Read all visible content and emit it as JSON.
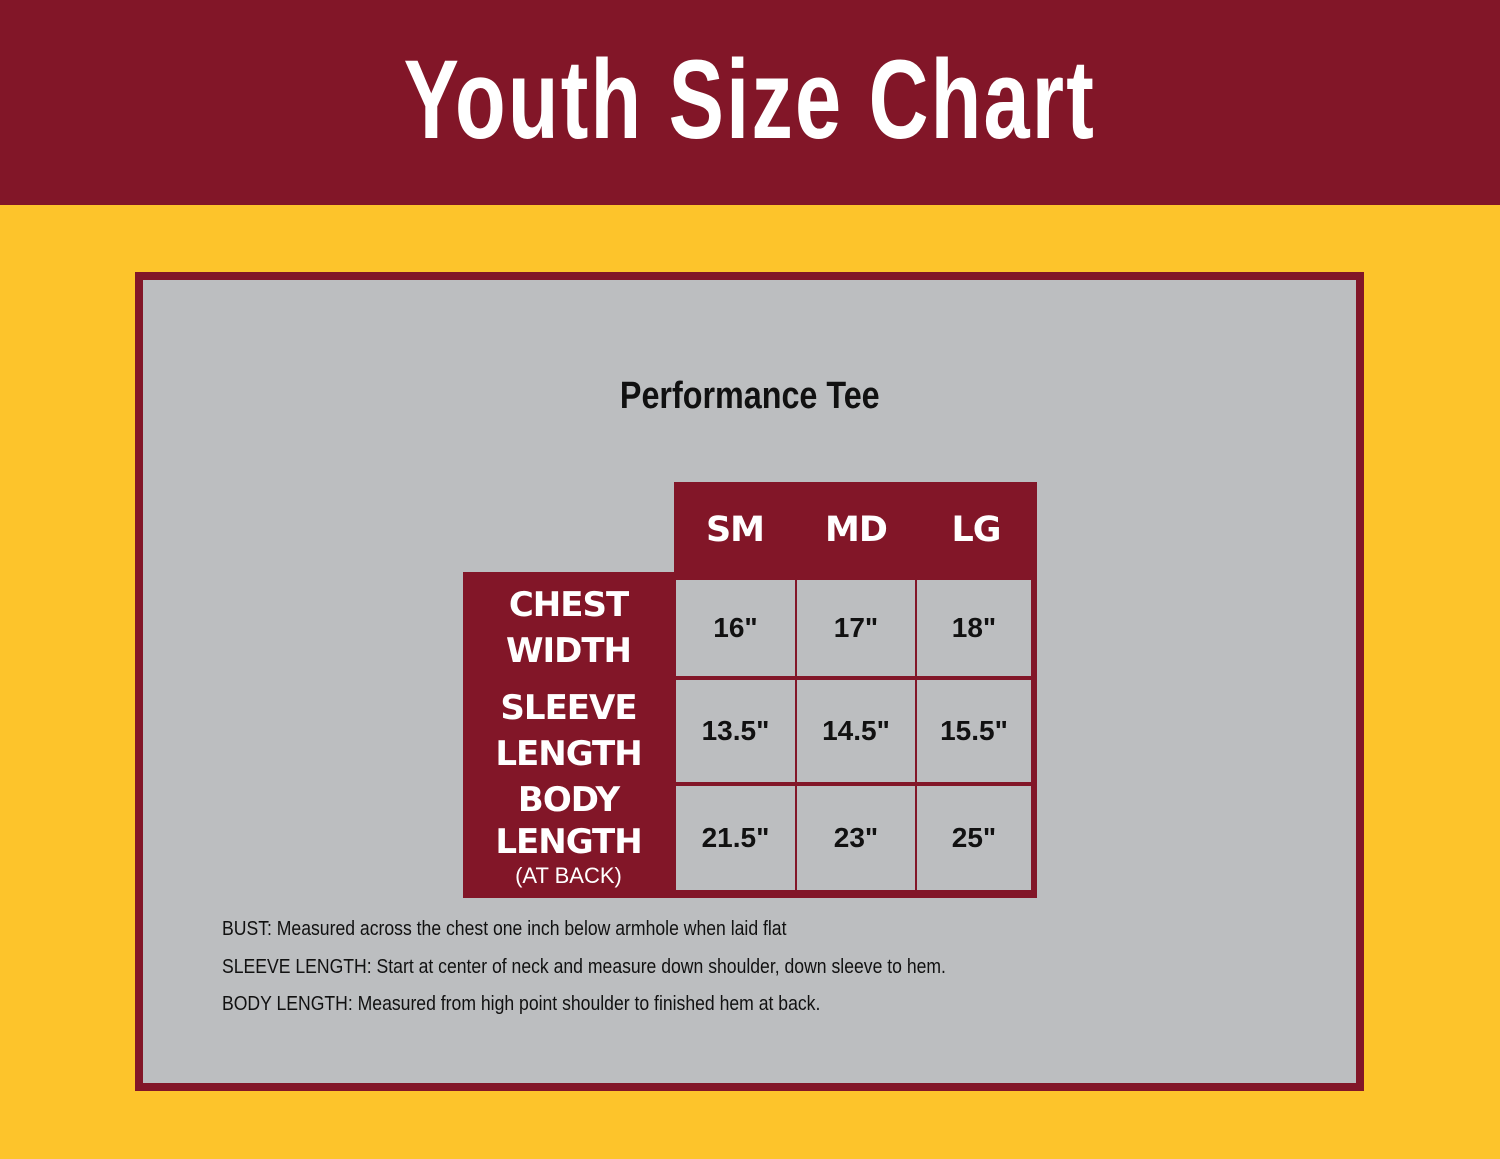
{
  "title": "Youth Size Chart",
  "subtitle": "Performance Tee",
  "colors": {
    "maroon": "#821628",
    "gold": "#fdc42b",
    "panel": "#bcbec0"
  },
  "table": {
    "columns": [
      "SM",
      "MD",
      "LG"
    ],
    "rows": [
      {
        "label_line1": "CHEST",
        "label_line2": "WIDTH",
        "label_note": "",
        "values": [
          "16\"",
          "17\"",
          "18\""
        ]
      },
      {
        "label_line1": "SLEEVE",
        "label_line2": "LENGTH",
        "label_note": "",
        "values": [
          "13.5\"",
          "14.5\"",
          "15.5\""
        ]
      },
      {
        "label_line1": "BODY",
        "label_line2": "LENGTH",
        "label_note": "(AT BACK)",
        "values": [
          "21.5\"",
          "23\"",
          "25\""
        ]
      }
    ]
  },
  "notes": [
    {
      "term": "BUST:",
      "text": " Measured across the chest one inch below armhole when laid flat"
    },
    {
      "term": "SLEEVE LENGTH:",
      "text": " Start at center of neck and measure down shoulder, down sleeve to hem."
    },
    {
      "term": "BODY LENGTH:",
      "text": " Measured from high point shoulder to finished hem at back."
    }
  ]
}
